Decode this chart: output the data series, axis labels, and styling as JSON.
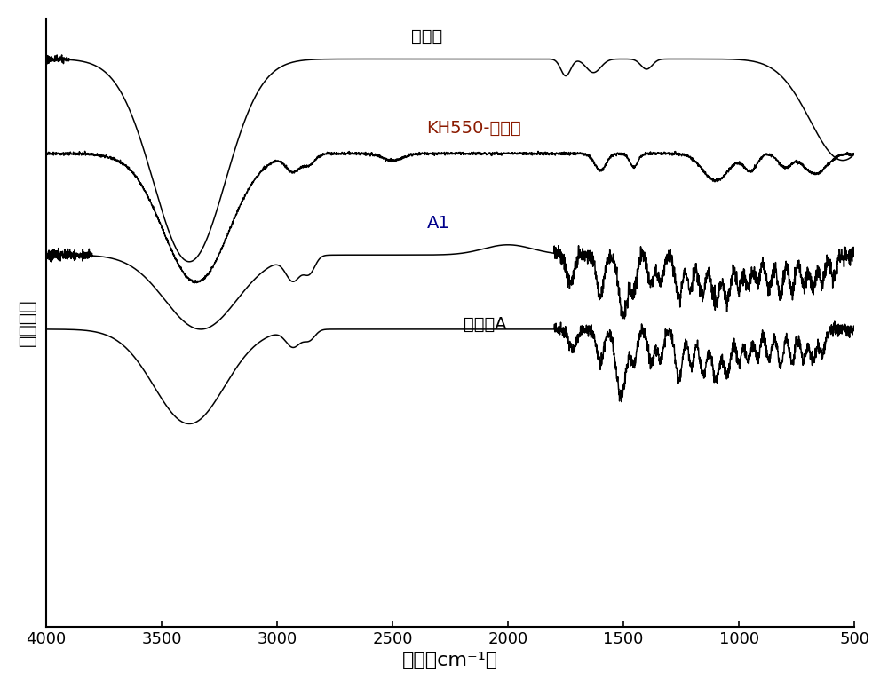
{
  "xlabel": "波长（cm⁻¹）",
  "ylabel": "相对强度",
  "xlim": [
    4000,
    500
  ],
  "xticks": [
    4000,
    3500,
    3000,
    2500,
    2000,
    1500,
    1000,
    500
  ],
  "labels": [
    "钓酸针",
    "KH550-钓酸针",
    "A1",
    "钓酸针A"
  ],
  "label_colors": [
    "#000000",
    "#8B1A00",
    "#00008B",
    "#000000"
  ],
  "offsets": [
    0.78,
    0.52,
    0.26,
    0.0
  ],
  "background_color": "#ffffff",
  "xlabel_fontsize": 16,
  "ylabel_fontsize": 16,
  "tick_fontsize": 13,
  "label_fontsize": 14
}
